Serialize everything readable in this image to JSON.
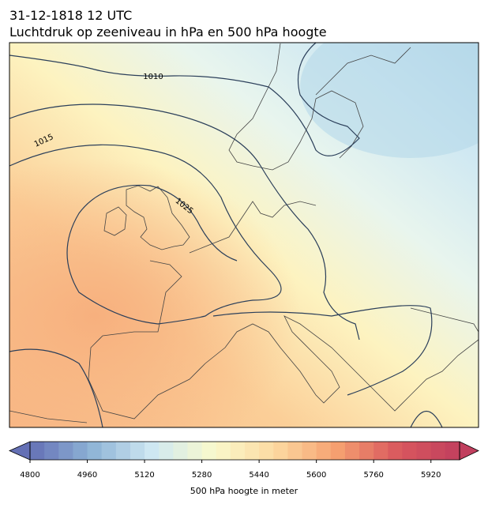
{
  "header": {
    "date": "31-12-1818 12 UTC",
    "title": "Luchtdruk op zeeniveau in hPa en 500 hPa hoogte"
  },
  "map": {
    "contour_labels": [
      1010,
      1015,
      1025
    ]
  },
  "colorbar": {
    "range": [
      4800,
      6000
    ],
    "step": 40,
    "ticks": [
      4800,
      4960,
      5120,
      5280,
      5440,
      5600,
      5760,
      5920
    ],
    "label": "500 hPa hoogte in meter",
    "colormap": [
      "#6470b5",
      "#8eb3d6",
      "#cfe8f2",
      "#f9f9cc",
      "#fdd9a0",
      "#f5a070",
      "#d9585e",
      "#c13f5e"
    ]
  }
}
